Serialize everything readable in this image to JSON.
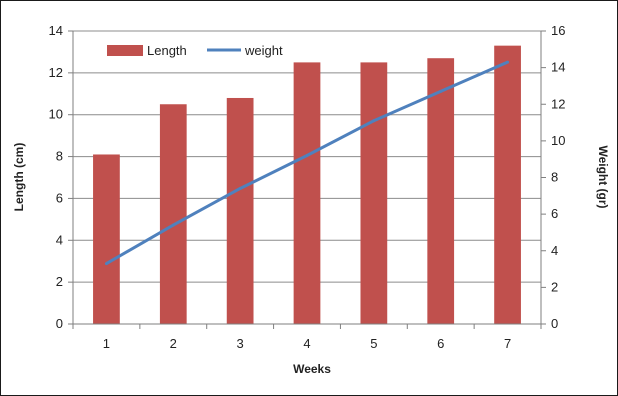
{
  "chart_data": {
    "type": "bar+line",
    "title": "",
    "xlabel": "Weeks",
    "ylabel_left": "Length (cm)",
    "ylabel_right": "Weight (gr)",
    "categories": [
      "1",
      "2",
      "3",
      "4",
      "5",
      "6",
      "7"
    ],
    "ylim_left": [
      0,
      14
    ],
    "yticks_left": [
      0,
      2,
      4,
      6,
      8,
      10,
      12,
      14
    ],
    "ylim_right": [
      0,
      16
    ],
    "yticks_right": [
      0,
      2,
      4,
      6,
      8,
      10,
      12,
      14,
      16
    ],
    "grid": true,
    "legend_position": "top-left",
    "series": [
      {
        "name": "Length",
        "type": "bar",
        "axis": "left",
        "color": "#c0504d",
        "values": [
          8.1,
          10.5,
          10.8,
          12.5,
          12.5,
          12.7,
          13.3
        ]
      },
      {
        "name": "weight",
        "type": "line",
        "axis": "right",
        "color": "#4f81bd",
        "values": [
          3.3,
          5.4,
          7.4,
          9.2,
          11.1,
          12.7,
          14.3
        ]
      }
    ]
  }
}
